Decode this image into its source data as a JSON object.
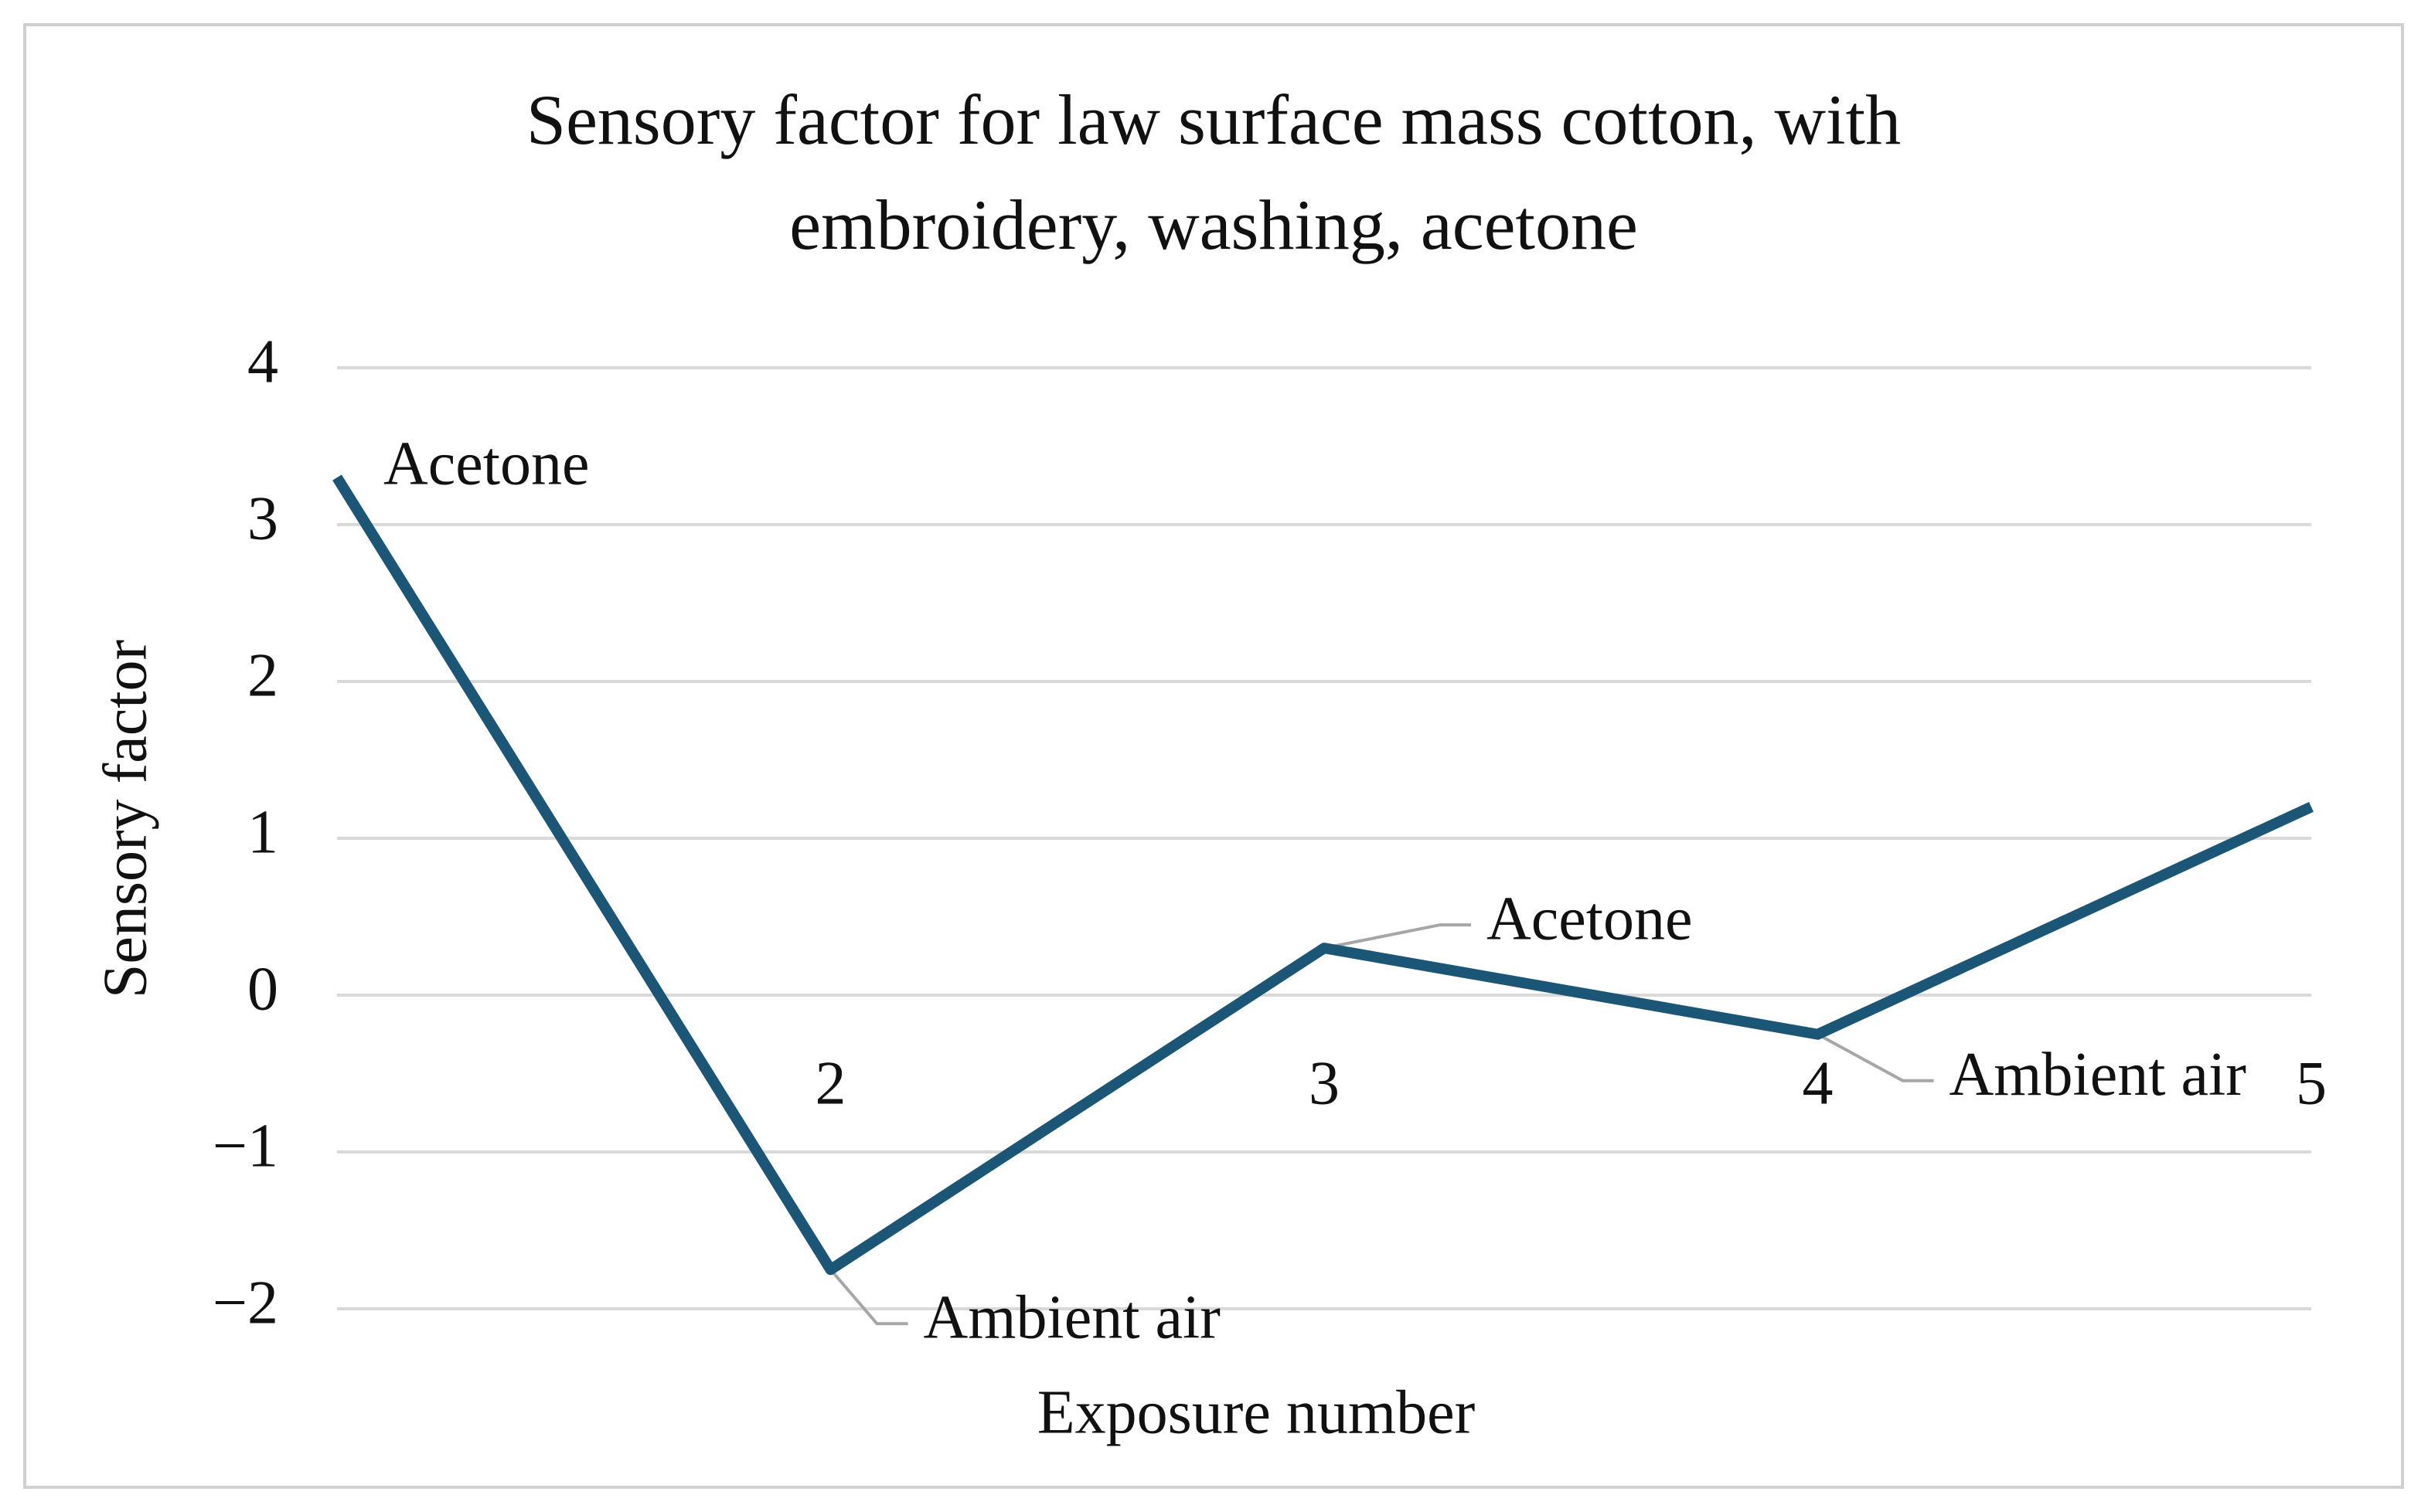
{
  "chart_data": {
    "type": "line",
    "title": "Sensory factor for law surface mass cotton, with embroidery, washing, acetone",
    "x_label": "Exposure number",
    "y_label": "Sensory factor",
    "categories": [
      null,
      "2",
      "3",
      "4",
      "5"
    ],
    "series": [
      {
        "name": "Sensory factor",
        "color": "#1b5676",
        "values": [
          3.3,
          -1.75,
          0.3,
          -0.25,
          1.2
        ],
        "point_labels": [
          "Acetone",
          "Ambient air",
          "Acetone",
          "Ambient air",
          null
        ]
      }
    ],
    "ylim": [
      -2,
      4
    ],
    "yticks": [
      {
        "value": -2,
        "label": "−2"
      },
      {
        "value": -1,
        "label": "−1"
      },
      0,
      1,
      2,
      3,
      4
    ],
    "grid": true
  }
}
